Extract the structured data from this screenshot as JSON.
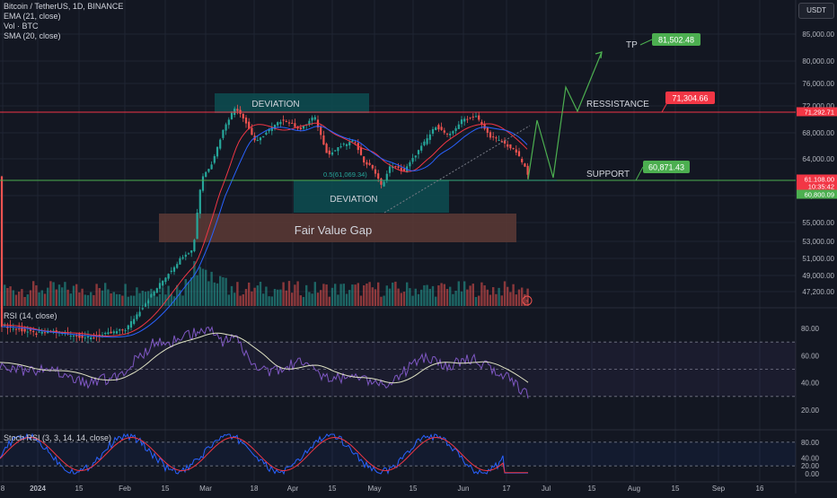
{
  "header": {
    "symbol": "Bitcoin / TetherUS, 1D, BINANCE",
    "ema": "EMA (21, close)",
    "vol": "Vol · BTC",
    "sma": "SMA (20, close)",
    "currency_button": "USDT"
  },
  "rsi_legend": "RSI (14, close)",
  "stoch_legend": "Stoch RSI (3, 3, 14, 14, close)",
  "annotations": {
    "tp_label": "TP",
    "resistance_label": "RESSISTANCE",
    "support_label": "SUPPORT",
    "deviation_top": "DEVIATION",
    "deviation_bottom": "DEVIATION",
    "fvg": "Fair Value Gap",
    "fib_text": "0.5(61,069.34)",
    "tp_badge": "81,502.48",
    "resistance_badge": "71,304.66",
    "support_badge": "60,871.43"
  },
  "colors": {
    "background": "#131722",
    "up": "#26a69a",
    "down": "#ef5350",
    "resistance": "#f23645",
    "support": "#4caf50",
    "deviation_box": "#0d4a4f",
    "fvg_box": "#5d3a35",
    "projection": "#4caf50",
    "ema": "#f23645",
    "sma": "#2962ff",
    "rsi": "#7e57c2",
    "rsi_ma": "#e0e3c4",
    "stoch_k": "#2962ff",
    "stoch_d": "#f23645"
  },
  "chart_data": [
    {
      "type": "candlestick",
      "title": "Bitcoin / TetherUS, 1D, BINANCE",
      "x_tick_labels": [
        "8",
        "2024",
        "15",
        "Feb",
        "15",
        "Mar",
        "18",
        "Apr",
        "15",
        "May",
        "15",
        "Jun",
        "17",
        "Jul",
        "15",
        "Aug",
        "15",
        "Sep",
        "16"
      ],
      "y_tick_labels": [
        "85,000.00",
        "80,000.00",
        "76,000.00",
        "72,000.00",
        "68,000.00",
        "64,000.00",
        "58,000.00",
        "55,000.00",
        "53,000.00",
        "51,000.00",
        "49,000.00",
        "47,200.00"
      ],
      "y_tick_values": [
        85000,
        80000,
        76000,
        72000,
        68000,
        64000,
        58000,
        55000,
        53000,
        51000,
        49000,
        47200
      ],
      "price_tags": [
        {
          "value": "71,292.71",
          "color": "#f23645"
        },
        {
          "value": "61,108.00",
          "color": "#f23645"
        },
        {
          "value": "10:35:42",
          "color": "#f23645"
        },
        {
          "value": "60,800.09",
          "color": "#4caf50"
        }
      ],
      "resistance_level": 71304.66,
      "support_level": 60871.43,
      "take_profit": 81502.48,
      "close_approx": 61108.0,
      "series": [
        {
          "name": "EMA (21, close)"
        },
        {
          "name": "SMA (20, close)"
        }
      ]
    },
    {
      "type": "line",
      "title": "RSI (14, close)",
      "y_tick_labels": [
        "80.00",
        "60.00",
        "40.00",
        "20.00"
      ],
      "y_tick_values": [
        80,
        60,
        40,
        20
      ],
      "bands": [
        30,
        50,
        70
      ]
    },
    {
      "type": "line",
      "title": "Stoch RSI (3, 3, 14, 14, close)",
      "y_tick_labels": [
        "80.00",
        "40.00",
        "20.00",
        "0.00"
      ],
      "y_tick_values": [
        80,
        40,
        20,
        0
      ],
      "bands": [
        20,
        80
      ]
    }
  ]
}
